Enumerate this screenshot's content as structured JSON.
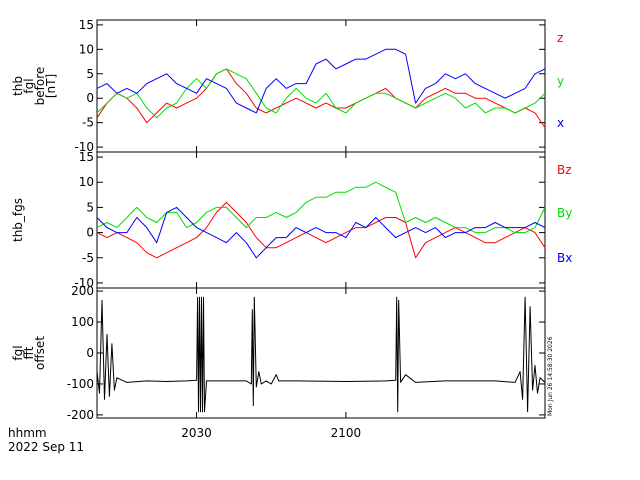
{
  "chart_data": [
    {
      "type": "line",
      "ylabel_lines": [
        "thb",
        "fgl",
        "before",
        "[nT]"
      ],
      "ylim": [
        -11,
        16
      ],
      "yticks": [
        15,
        10,
        5,
        0,
        -5,
        -10
      ],
      "series": [
        {
          "name": "z",
          "color": "#ff0000",
          "x": [
            0,
            2,
            4,
            6,
            8,
            10,
            12,
            14,
            16,
            18,
            20,
            22,
            24,
            26,
            28,
            30,
            32,
            34,
            36,
            38,
            40,
            42,
            44,
            46,
            48,
            50,
            52,
            54,
            56,
            58,
            60,
            62,
            64,
            66,
            68,
            70,
            72,
            74,
            76,
            78,
            80,
            82,
            84,
            86,
            88,
            90
          ],
          "y": [
            -4,
            -1,
            1,
            0,
            -2,
            -5,
            -3,
            -1,
            -2,
            -1,
            0,
            2,
            5,
            6,
            3,
            1,
            -2,
            -3,
            -2,
            -1,
            0,
            -1,
            -2,
            -1,
            -2,
            -2,
            -1,
            0,
            1,
            2,
            0,
            -1,
            -2,
            0,
            1,
            2,
            1,
            1,
            0,
            0,
            -1,
            -2,
            -3,
            -2,
            -3,
            -6
          ]
        },
        {
          "name": "y",
          "color": "#00dd00",
          "x": [
            0,
            2,
            4,
            6,
            8,
            10,
            12,
            14,
            16,
            18,
            20,
            22,
            24,
            26,
            28,
            30,
            32,
            34,
            36,
            38,
            40,
            42,
            44,
            46,
            48,
            50,
            52,
            54,
            56,
            58,
            60,
            62,
            64,
            66,
            68,
            70,
            72,
            74,
            76,
            78,
            80,
            82,
            84,
            86,
            88,
            90
          ],
          "y": [
            -3,
            -1,
            1,
            0,
            1,
            -2,
            -4,
            -2,
            -1,
            2,
            4,
            2,
            5,
            6,
            5,
            4,
            1,
            -2,
            -3,
            0,
            2,
            0,
            -1,
            1,
            -2,
            -3,
            -1,
            0,
            1,
            1,
            0,
            -1,
            -2,
            -1,
            0,
            1,
            0,
            -2,
            -1,
            -3,
            -2,
            -2,
            -3,
            -2,
            -1,
            1
          ]
        },
        {
          "name": "x",
          "color": "#0000ff",
          "x": [
            0,
            2,
            4,
            6,
            8,
            10,
            12,
            14,
            16,
            18,
            20,
            22,
            24,
            26,
            28,
            30,
            32,
            34,
            36,
            38,
            40,
            42,
            44,
            46,
            48,
            50,
            52,
            54,
            56,
            58,
            60,
            62,
            64,
            66,
            68,
            70,
            72,
            74,
            76,
            78,
            80,
            82,
            84,
            86,
            88,
            90
          ],
          "y": [
            2,
            3,
            1,
            2,
            1,
            3,
            4,
            5,
            3,
            2,
            1,
            4,
            3,
            2,
            -1,
            -2,
            -3,
            2,
            4,
            2,
            3,
            3,
            7,
            8,
            6,
            7,
            8,
            8,
            9,
            10,
            10,
            9,
            -1,
            2,
            3,
            5,
            4,
            5,
            3,
            2,
            1,
            0,
            1,
            2,
            5,
            6
          ]
        }
      ]
    },
    {
      "type": "line",
      "ylabel_lines": [
        "thb_fgs"
      ],
      "ylim": [
        -11,
        16
      ],
      "yticks": [
        15,
        10,
        5,
        0,
        -5,
        -10
      ],
      "series": [
        {
          "name": "Bz",
          "color": "#ff0000",
          "x": [
            0,
            2,
            4,
            6,
            8,
            10,
            12,
            14,
            16,
            18,
            20,
            22,
            24,
            26,
            28,
            30,
            32,
            34,
            36,
            38,
            40,
            42,
            44,
            46,
            48,
            50,
            52,
            54,
            56,
            58,
            60,
            62,
            64,
            66,
            68,
            70,
            72,
            74,
            76,
            78,
            80,
            82,
            84,
            86,
            88,
            90
          ],
          "y": [
            0,
            -1,
            0,
            -1,
            -2,
            -4,
            -5,
            -4,
            -3,
            -2,
            -1,
            1,
            4,
            6,
            4,
            2,
            -1,
            -3,
            -3,
            -2,
            -1,
            0,
            -1,
            -2,
            -1,
            0,
            1,
            1,
            2,
            3,
            3,
            2,
            -5,
            -2,
            -1,
            0,
            1,
            0,
            -1,
            -2,
            -2,
            -1,
            0,
            1,
            0,
            -3
          ]
        },
        {
          "name": "By",
          "color": "#00dd00",
          "x": [
            0,
            2,
            4,
            6,
            8,
            10,
            12,
            14,
            16,
            18,
            20,
            22,
            24,
            26,
            28,
            30,
            32,
            34,
            36,
            38,
            40,
            42,
            44,
            46,
            48,
            50,
            52,
            54,
            56,
            58,
            60,
            62,
            64,
            66,
            68,
            70,
            72,
            74,
            76,
            78,
            80,
            82,
            84,
            86,
            88,
            90
          ],
          "y": [
            1,
            2,
            1,
            3,
            5,
            3,
            2,
            4,
            4,
            1,
            2,
            4,
            5,
            5,
            3,
            1,
            3,
            3,
            4,
            3,
            4,
            6,
            7,
            7,
            8,
            8,
            9,
            9,
            10,
            9,
            8,
            2,
            3,
            2,
            3,
            2,
            1,
            1,
            0,
            0,
            1,
            1,
            0,
            0,
            1,
            5
          ]
        },
        {
          "name": "Bx",
          "color": "#0000ff",
          "x": [
            0,
            2,
            4,
            6,
            8,
            10,
            12,
            14,
            16,
            18,
            20,
            22,
            24,
            26,
            28,
            30,
            32,
            34,
            36,
            38,
            40,
            42,
            44,
            46,
            48,
            50,
            52,
            54,
            56,
            58,
            60,
            62,
            64,
            66,
            68,
            70,
            72,
            74,
            76,
            78,
            80,
            82,
            84,
            86,
            88,
            90
          ],
          "y": [
            3,
            1,
            0,
            0,
            3,
            1,
            -2,
            4,
            5,
            3,
            1,
            0,
            -1,
            -2,
            0,
            -2,
            -5,
            -3,
            -1,
            -1,
            1,
            0,
            1,
            0,
            0,
            -1,
            2,
            1,
            3,
            1,
            -1,
            0,
            1,
            0,
            1,
            -1,
            0,
            0,
            1,
            1,
            2,
            1,
            1,
            1,
            2,
            1
          ]
        }
      ]
    },
    {
      "type": "line",
      "ylabel_lines": [
        "fgl",
        "fft",
        "offset"
      ],
      "ylim": [
        -210,
        210
      ],
      "yticks": [
        200,
        100,
        0,
        -100,
        -200
      ],
      "series": [
        {
          "name": "",
          "color": "#000000",
          "x": [
            0,
            0.5,
            1,
            1.5,
            2,
            2.5,
            3,
            3.5,
            4,
            6,
            10,
            14,
            18,
            20,
            20.2,
            20.4,
            20.6,
            20.8,
            21,
            21.2,
            21.4,
            21.6,
            22,
            26,
            30,
            31,
            31.2,
            31.4,
            31.6,
            32,
            32.5,
            33,
            34,
            35,
            36,
            36.5,
            37,
            40,
            50,
            58,
            60,
            60.2,
            60.4,
            60.6,
            61,
            62,
            64,
            70,
            80,
            84,
            85,
            85.5,
            86,
            86.5,
            87,
            87.5,
            88,
            88.5,
            89,
            90
          ],
          "y": [
            -60,
            -130,
            170,
            -150,
            60,
            -140,
            30,
            -120,
            -80,
            -95,
            -90,
            -92,
            -90,
            -88,
            180,
            -190,
            180,
            -190,
            180,
            -190,
            180,
            -190,
            -90,
            -90,
            -90,
            -100,
            140,
            -170,
            180,
            -110,
            -60,
            -100,
            -90,
            -100,
            -70,
            -90,
            -90,
            -90,
            -92,
            -90,
            -88,
            180,
            -190,
            170,
            -95,
            -70,
            -95,
            -90,
            -90,
            -95,
            -60,
            -150,
            180,
            -190,
            150,
            -120,
            -40,
            -130,
            -80,
            -95
          ]
        }
      ]
    }
  ],
  "axes": {
    "xlim": [
      0,
      90
    ],
    "xticks": [
      {
        "value": 20,
        "label": "2030"
      },
      {
        "value": 50,
        "label": "2100"
      }
    ]
  },
  "footer": {
    "line1": "hhmm",
    "line2": "2022 Sep 11",
    "vertical_stamp": "Mon Jun 26 14:58:30 2026"
  }
}
